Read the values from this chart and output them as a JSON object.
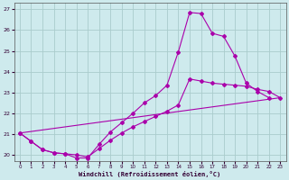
{
  "bg_color": "#ceeaed",
  "grid_color": "#aacccc",
  "line_color": "#aa00aa",
  "xlim": [
    -0.5,
    23.5
  ],
  "ylim": [
    19.7,
    27.3
  ],
  "yticks": [
    20,
    21,
    22,
    23,
    24,
    25,
    26,
    27
  ],
  "xticks": [
    0,
    1,
    2,
    3,
    4,
    5,
    6,
    7,
    8,
    9,
    10,
    11,
    12,
    13,
    14,
    15,
    16,
    17,
    18,
    19,
    20,
    21,
    22,
    23
  ],
  "xlabel": "Windchill (Refroidissement éolien,°C)",
  "line1_x": [
    0,
    1,
    2,
    3,
    4,
    5,
    6,
    7,
    8,
    9,
    10,
    11,
    12,
    13,
    14,
    15,
    16,
    17,
    18,
    19,
    20,
    21,
    22
  ],
  "line1_y": [
    21.05,
    20.65,
    20.25,
    20.1,
    20.05,
    19.85,
    19.85,
    20.5,
    21.1,
    21.55,
    22.0,
    22.5,
    22.85,
    23.35,
    24.95,
    26.85,
    26.8,
    25.85,
    25.7,
    24.75,
    23.45,
    23.05,
    22.75
  ],
  "line2_x": [
    0,
    1,
    2,
    3,
    4,
    5,
    6,
    7,
    8,
    9,
    10,
    11,
    12,
    13,
    14,
    15,
    16,
    17,
    18,
    19,
    20,
    21,
    22,
    23
  ],
  "line2_y": [
    21.05,
    20.65,
    20.25,
    20.1,
    20.05,
    20.0,
    19.9,
    20.3,
    20.7,
    21.05,
    21.35,
    21.6,
    21.85,
    22.1,
    22.4,
    23.65,
    23.55,
    23.45,
    23.4,
    23.35,
    23.3,
    23.15,
    23.05,
    22.75
  ],
  "line3_x": [
    0,
    23
  ],
  "line3_y": [
    21.05,
    22.75
  ]
}
